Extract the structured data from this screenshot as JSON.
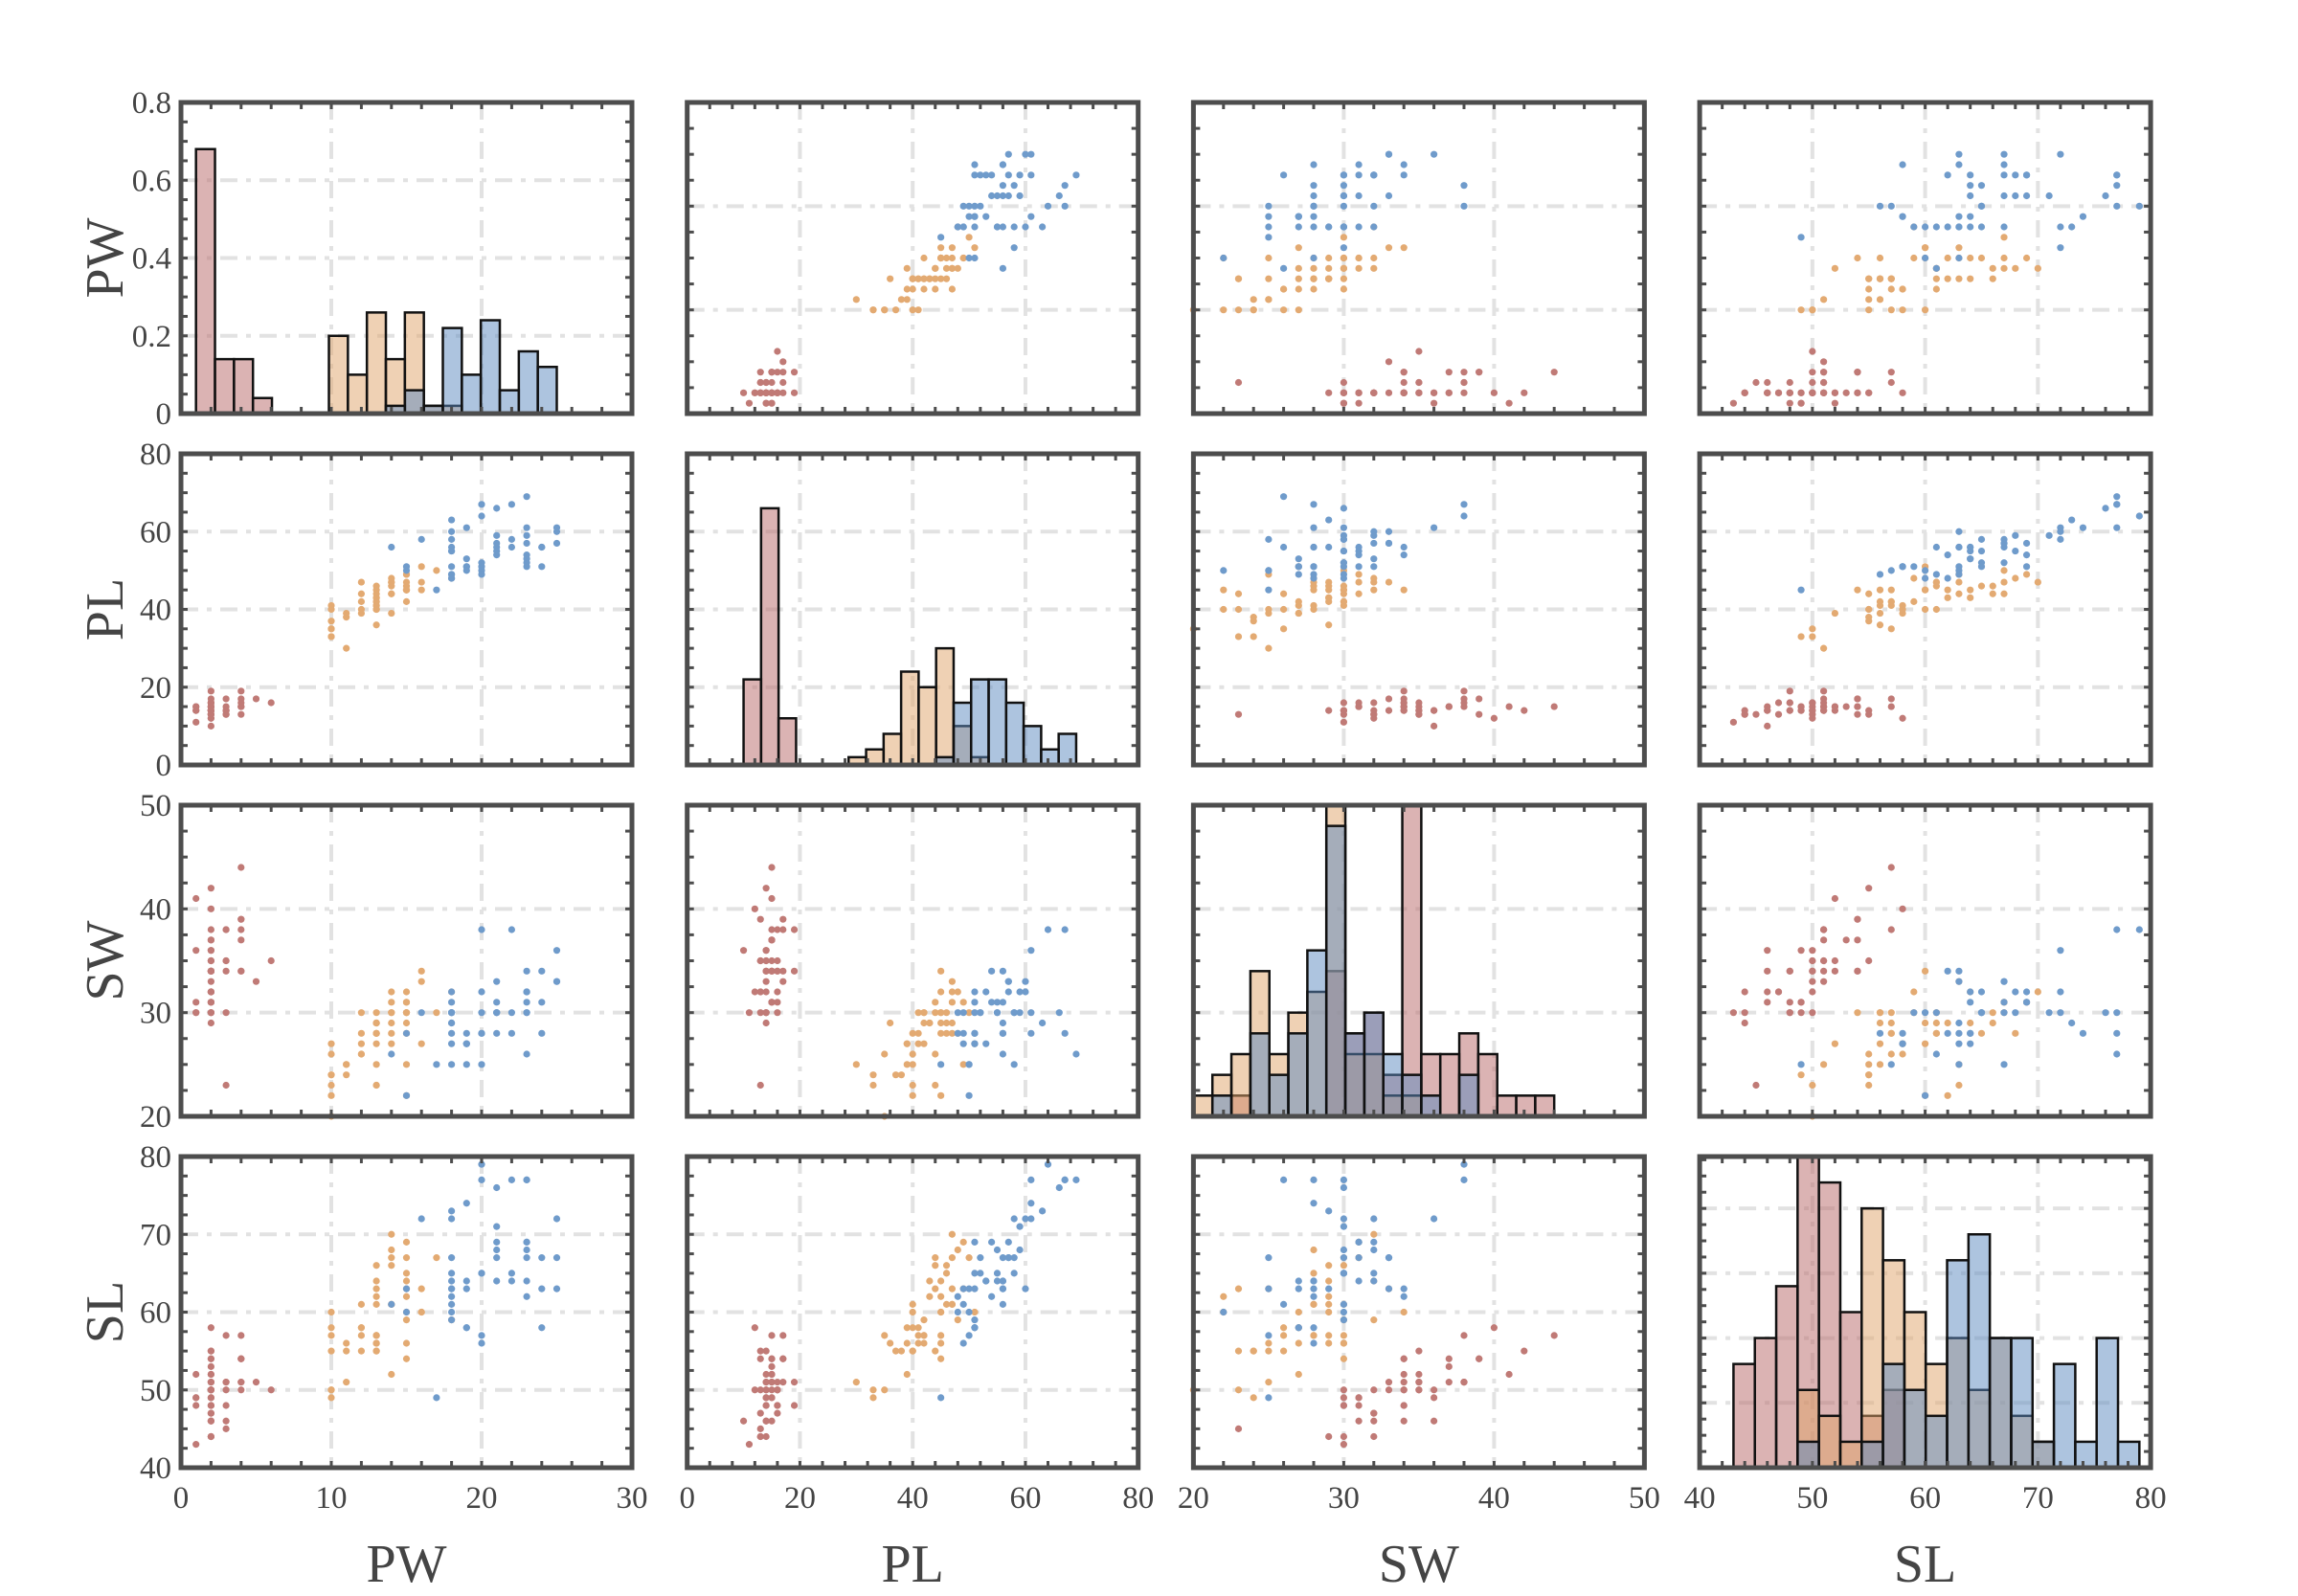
{
  "chart_data": {
    "type": "scatter-matrix",
    "variables": [
      "PW",
      "PL",
      "SW",
      "SL"
    ],
    "axis_labels": {
      "x": [
        "PW",
        "PL",
        "SW",
        "SL"
      ],
      "y": [
        "PW",
        "PL",
        "SW",
        "SL"
      ]
    },
    "ranges": {
      "PW": [
        0,
        30
      ],
      "PL": [
        0,
        80
      ],
      "SW": [
        20,
        50
      ],
      "SL": [
        40,
        80
      ]
    },
    "major_steps": {
      "PW": 10,
      "PL": 20,
      "SW": 10,
      "SL": 10
    },
    "x_tick_labels": {
      "PW": [
        "0",
        "10",
        "20",
        "30"
      ],
      "PL": [
        "0",
        "20",
        "40",
        "60",
        "80"
      ],
      "SW": [
        "20",
        "30",
        "40",
        "50"
      ],
      "SL": [
        "40",
        "50",
        "60",
        "70",
        "80"
      ]
    },
    "y_tick_labels": {
      "PW": [
        "0",
        "0.2",
        "0.4",
        "0.6",
        "0.8"
      ],
      "PL": [
        "0",
        "20",
        "40",
        "60",
        "80"
      ],
      "SW": [
        "20",
        "30",
        "40",
        "50"
      ],
      "SL": [
        "40",
        "50",
        "60",
        "70",
        "80"
      ]
    },
    "diagonal": {
      "type": "histogram",
      "normalization": "probability",
      "bins": 19,
      "PW_ylim": [
        0,
        0.8
      ],
      "PL_ylim": [
        0,
        0.8
      ]
    },
    "grid": true,
    "legend": "none",
    "columns": [
      "SL",
      "SW",
      "PL",
      "PW"
    ],
    "series": [
      {
        "color": "#c07a76",
        "hist_color": "#b86868",
        "points": [
          [
            51,
            35,
            14,
            2
          ],
          [
            49,
            30,
            14,
            2
          ],
          [
            47,
            32,
            13,
            2
          ],
          [
            46,
            31,
            15,
            2
          ],
          [
            50,
            36,
            14,
            2
          ],
          [
            54,
            39,
            17,
            4
          ],
          [
            46,
            34,
            14,
            3
          ],
          [
            50,
            34,
            15,
            2
          ],
          [
            44,
            29,
            14,
            2
          ],
          [
            49,
            31,
            15,
            1
          ],
          [
            54,
            37,
            15,
            2
          ],
          [
            48,
            34,
            16,
            2
          ],
          [
            48,
            30,
            14,
            1
          ],
          [
            43,
            30,
            11,
            1
          ],
          [
            58,
            40,
            12,
            2
          ],
          [
            57,
            44,
            15,
            4
          ],
          [
            54,
            39,
            13,
            4
          ],
          [
            51,
            35,
            14,
            3
          ],
          [
            57,
            38,
            17,
            3
          ],
          [
            51,
            38,
            15,
            3
          ],
          [
            54,
            34,
            17,
            2
          ],
          [
            51,
            37,
            15,
            4
          ],
          [
            46,
            36,
            10,
            2
          ],
          [
            51,
            33,
            17,
            5
          ],
          [
            48,
            34,
            19,
            2
          ],
          [
            50,
            30,
            16,
            2
          ],
          [
            50,
            34,
            16,
            4
          ],
          [
            52,
            35,
            15,
            2
          ],
          [
            52,
            34,
            14,
            2
          ],
          [
            47,
            32,
            16,
            2
          ],
          [
            48,
            31,
            16,
            2
          ],
          [
            54,
            34,
            15,
            4
          ],
          [
            52,
            41,
            15,
            1
          ],
          [
            55,
            42,
            14,
            2
          ],
          [
            49,
            31,
            15,
            2
          ],
          [
            50,
            32,
            12,
            2
          ],
          [
            55,
            35,
            13,
            2
          ],
          [
            49,
            36,
            14,
            1
          ],
          [
            44,
            30,
            13,
            2
          ],
          [
            51,
            34,
            15,
            2
          ],
          [
            50,
            35,
            13,
            3
          ],
          [
            45,
            23,
            13,
            3
          ],
          [
            44,
            32,
            13,
            2
          ],
          [
            50,
            35,
            16,
            6
          ],
          [
            51,
            38,
            19,
            4
          ],
          [
            48,
            30,
            14,
            3
          ],
          [
            51,
            38,
            16,
            2
          ],
          [
            46,
            32,
            14,
            2
          ],
          [
            53,
            37,
            15,
            2
          ],
          [
            50,
            33,
            14,
            2
          ]
        ]
      },
      {
        "color": "#e3aa72",
        "hist_color": "#e0a46a",
        "points": [
          [
            70,
            32,
            47,
            14
          ],
          [
            64,
            32,
            45,
            15
          ],
          [
            69,
            31,
            49,
            15
          ],
          [
            55,
            23,
            40,
            13
          ],
          [
            65,
            28,
            46,
            15
          ],
          [
            57,
            28,
            45,
            13
          ],
          [
            63,
            33,
            47,
            16
          ],
          [
            49,
            24,
            33,
            10
          ],
          [
            66,
            29,
            46,
            13
          ],
          [
            52,
            27,
            39,
            14
          ],
          [
            50,
            20,
            35,
            10
          ],
          [
            59,
            30,
            42,
            15
          ],
          [
            60,
            22,
            40,
            10
          ],
          [
            61,
            29,
            47,
            14
          ],
          [
            56,
            29,
            36,
            13
          ],
          [
            67,
            31,
            44,
            14
          ],
          [
            56,
            30,
            45,
            15
          ],
          [
            58,
            27,
            41,
            10
          ],
          [
            62,
            22,
            45,
            15
          ],
          [
            56,
            25,
            39,
            11
          ],
          [
            59,
            32,
            48,
            18
          ],
          [
            61,
            28,
            40,
            13
          ],
          [
            63,
            25,
            49,
            15
          ],
          [
            61,
            28,
            47,
            12
          ],
          [
            64,
            29,
            43,
            13
          ],
          [
            66,
            30,
            44,
            14
          ],
          [
            68,
            28,
            48,
            14
          ],
          [
            67,
            30,
            50,
            17
          ],
          [
            60,
            29,
            45,
            15
          ],
          [
            57,
            26,
            35,
            10
          ],
          [
            55,
            24,
            38,
            11
          ],
          [
            55,
            24,
            37,
            10
          ],
          [
            58,
            27,
            39,
            12
          ],
          [
            60,
            27,
            51,
            16
          ],
          [
            54,
            30,
            45,
            15
          ],
          [
            60,
            34,
            45,
            16
          ],
          [
            67,
            31,
            47,
            15
          ],
          [
            63,
            23,
            44,
            13
          ],
          [
            56,
            30,
            41,
            13
          ],
          [
            55,
            25,
            40,
            13
          ],
          [
            55,
            26,
            44,
            12
          ],
          [
            61,
            30,
            46,
            14
          ],
          [
            58,
            26,
            40,
            12
          ],
          [
            50,
            23,
            33,
            10
          ],
          [
            56,
            27,
            42,
            13
          ],
          [
            57,
            30,
            42,
            12
          ],
          [
            57,
            29,
            42,
            13
          ],
          [
            62,
            29,
            43,
            13
          ],
          [
            51,
            25,
            30,
            11
          ],
          [
            57,
            28,
            41,
            13
          ]
        ]
      },
      {
        "color": "#6f9bcb",
        "hist_color": "#5b8ac0",
        "points": [
          [
            63,
            33,
            60,
            25
          ],
          [
            58,
            27,
            51,
            19
          ],
          [
            71,
            30,
            59,
            21
          ],
          [
            63,
            29,
            56,
            18
          ],
          [
            65,
            30,
            58,
            22
          ],
          [
            76,
            30,
            66,
            21
          ],
          [
            49,
            25,
            45,
            17
          ],
          [
            73,
            29,
            63,
            18
          ],
          [
            67,
            25,
            58,
            18
          ],
          [
            72,
            36,
            61,
            25
          ],
          [
            65,
            32,
            51,
            20
          ],
          [
            64,
            27,
            53,
            19
          ],
          [
            68,
            30,
            55,
            21
          ],
          [
            57,
            25,
            50,
            20
          ],
          [
            58,
            28,
            51,
            24
          ],
          [
            64,
            32,
            53,
            23
          ],
          [
            65,
            30,
            55,
            18
          ],
          [
            77,
            38,
            67,
            22
          ],
          [
            77,
            26,
            69,
            23
          ],
          [
            60,
            22,
            50,
            15
          ],
          [
            69,
            32,
            57,
            23
          ],
          [
            56,
            28,
            49,
            20
          ],
          [
            77,
            28,
            67,
            20
          ],
          [
            63,
            27,
            49,
            18
          ],
          [
            67,
            33,
            57,
            21
          ],
          [
            72,
            32,
            60,
            18
          ],
          [
            62,
            28,
            48,
            18
          ],
          [
            61,
            30,
            49,
            18
          ],
          [
            64,
            28,
            56,
            21
          ],
          [
            72,
            30,
            58,
            16
          ],
          [
            74,
            28,
            61,
            19
          ],
          [
            79,
            38,
            64,
            20
          ],
          [
            64,
            28,
            56,
            22
          ],
          [
            63,
            28,
            51,
            15
          ],
          [
            61,
            26,
            56,
            14
          ],
          [
            77,
            30,
            61,
            23
          ],
          [
            63,
            34,
            56,
            24
          ],
          [
            64,
            31,
            55,
            18
          ],
          [
            60,
            30,
            48,
            18
          ],
          [
            69,
            31,
            54,
            21
          ],
          [
            67,
            31,
            56,
            24
          ],
          [
            69,
            31,
            51,
            23
          ],
          [
            58,
            27,
            51,
            19
          ],
          [
            68,
            32,
            59,
            23
          ],
          [
            67,
            33,
            57,
            25
          ],
          [
            67,
            30,
            52,
            23
          ],
          [
            63,
            25,
            50,
            19
          ],
          [
            65,
            30,
            52,
            20
          ],
          [
            62,
            34,
            54,
            23
          ],
          [
            59,
            30,
            51,
            18
          ]
        ]
      }
    ]
  }
}
